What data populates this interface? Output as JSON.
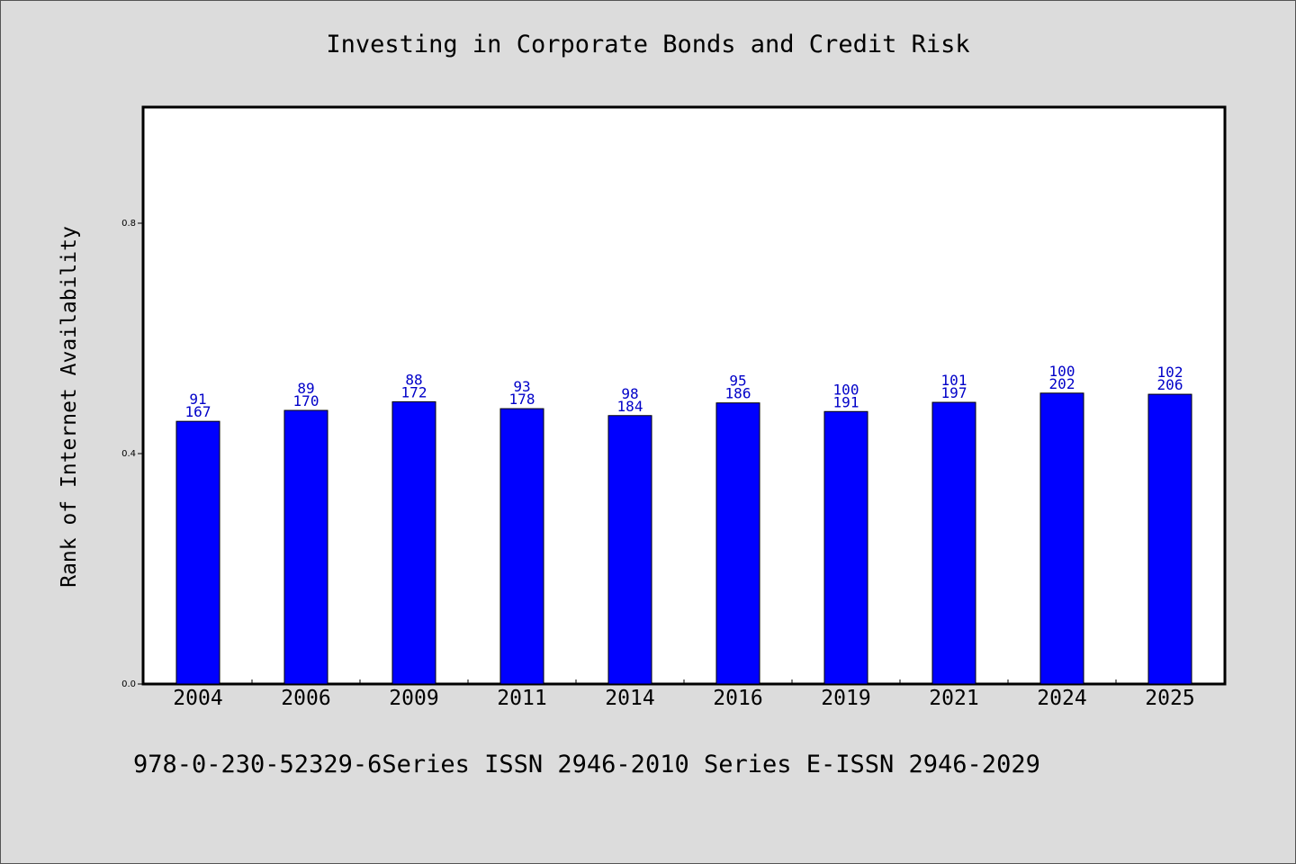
{
  "chart_data": {
    "type": "bar",
    "title": "Investing in Corporate Bonds and Credit Risk",
    "ylabel": "Rank of Internet Availability",
    "xlabel": "",
    "ylim": [
      0,
      1.0
    ],
    "yticks": [
      "0.0",
      "0.4",
      "0.8"
    ],
    "categories": [
      "2004",
      "2006",
      "2009",
      "2011",
      "2014",
      "2016",
      "2019",
      "2021",
      "2024",
      "2025"
    ],
    "values": [
      0.456,
      0.475,
      0.49,
      0.478,
      0.466,
      0.488,
      0.473,
      0.489,
      0.505,
      0.503
    ],
    "label_top": [
      "91",
      "89",
      "88",
      "93",
      "98",
      "95",
      "100",
      "101",
      "100",
      "102"
    ],
    "label_bottom": [
      "167",
      "170",
      "172",
      "178",
      "184",
      "186",
      "191",
      "197",
      "202",
      "206"
    ],
    "bar_color": "#0000ff",
    "label_color": "#0000c8",
    "grid": false,
    "legend": "none"
  },
  "footer": "978-0-230-52329-6Series ISSN 2946-2010 Series E-ISSN 2946-2029"
}
